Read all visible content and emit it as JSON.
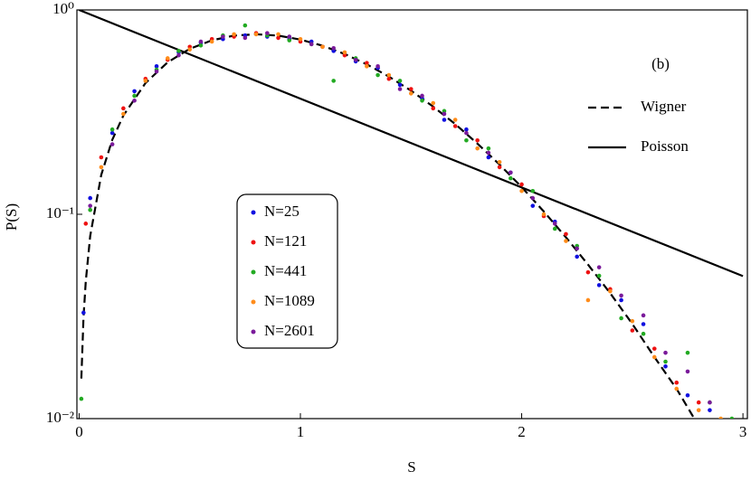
{
  "chart_data": {
    "type": "scatter",
    "x_label": "S",
    "y_label": "P(S)",
    "annotation": "(b)",
    "log_y": true,
    "xlim": [
      -0.01,
      3.02
    ],
    "ylim": [
      0.01,
      1
    ],
    "xticks": [
      0,
      1,
      2,
      3
    ],
    "yticks": [
      {
        "value": 1,
        "label": "10⁰"
      },
      {
        "value": 0.1,
        "label": "10⁻¹"
      },
      {
        "value": 0.01,
        "label": "10⁻²"
      }
    ],
    "series": [
      {
        "name": "N=25",
        "color": "#1010e0",
        "x": [
          0.02,
          0.05,
          0.15,
          0.25,
          0.35,
          0.45,
          0.55,
          0.65,
          0.75,
          0.85,
          0.95,
          1.05,
          1.15,
          1.25,
          1.35,
          1.45,
          1.55,
          1.65,
          1.75,
          1.85,
          1.95,
          2.05,
          2.15,
          2.25,
          2.35,
          2.45,
          2.55,
          2.65,
          2.75,
          2.85
        ],
        "values": [
          0.033,
          0.12,
          0.25,
          0.4,
          0.53,
          0.62,
          0.69,
          0.72,
          0.75,
          0.74,
          0.72,
          0.7,
          0.63,
          0.56,
          0.52,
          0.43,
          0.37,
          0.29,
          0.26,
          0.19,
          0.16,
          0.11,
          0.092,
          0.062,
          0.045,
          0.038,
          0.029,
          0.018,
          0.013,
          0.011
        ]
      },
      {
        "name": "N=121",
        "color": "#ee1111",
        "x": [
          0.03,
          0.1,
          0.2,
          0.3,
          0.4,
          0.5,
          0.6,
          0.7,
          0.8,
          0.9,
          1.0,
          1.1,
          1.2,
          1.3,
          1.4,
          1.5,
          1.6,
          1.7,
          1.8,
          1.9,
          2.0,
          2.1,
          2.2,
          2.3,
          2.4,
          2.5,
          2.6,
          2.7,
          2.8
        ],
        "values": [
          0.09,
          0.19,
          0.33,
          0.46,
          0.57,
          0.66,
          0.72,
          0.74,
          0.77,
          0.73,
          0.7,
          0.66,
          0.6,
          0.55,
          0.46,
          0.41,
          0.33,
          0.27,
          0.23,
          0.17,
          0.14,
          0.098,
          0.08,
          0.052,
          0.043,
          0.027,
          0.022,
          0.015,
          0.012
        ]
      },
      {
        "name": "N=441",
        "color": "#22aa22",
        "x": [
          0.01,
          0.05,
          0.15,
          0.25,
          0.35,
          0.45,
          0.55,
          0.65,
          0.75,
          0.85,
          0.95,
          1.05,
          1.15,
          1.25,
          1.35,
          1.45,
          1.55,
          1.65,
          1.75,
          1.85,
          1.95,
          2.05,
          2.15,
          2.25,
          2.35,
          2.45,
          2.55,
          2.65,
          2.75,
          2.85,
          2.95
        ],
        "values": [
          0.0125,
          0.105,
          0.26,
          0.38,
          0.51,
          0.63,
          0.67,
          0.75,
          0.84,
          0.75,
          0.71,
          0.68,
          0.45,
          0.58,
          0.48,
          0.45,
          0.36,
          0.32,
          0.23,
          0.21,
          0.15,
          0.13,
          0.085,
          0.07,
          0.05,
          0.031,
          0.026,
          0.019,
          0.021,
          0.012,
          0.01
        ]
      },
      {
        "name": "N=1089",
        "color": "#ff8c1a",
        "x": [
          0.1,
          0.2,
          0.3,
          0.4,
          0.5,
          0.6,
          0.7,
          0.8,
          0.9,
          1.0,
          1.1,
          1.2,
          1.3,
          1.4,
          1.5,
          1.6,
          1.7,
          1.8,
          1.9,
          2.0,
          2.1,
          2.2,
          2.3,
          2.4,
          2.5,
          2.6,
          2.7,
          2.8,
          2.9
        ],
        "values": [
          0.17,
          0.31,
          0.45,
          0.58,
          0.64,
          0.7,
          0.76,
          0.76,
          0.76,
          0.72,
          0.66,
          0.62,
          0.53,
          0.48,
          0.39,
          0.35,
          0.29,
          0.21,
          0.18,
          0.13,
          0.1,
          0.074,
          0.038,
          0.042,
          0.03,
          0.02,
          0.014,
          0.011,
          0.01
        ]
      },
      {
        "name": "N=2601",
        "color": "#7a1a9a",
        "x": [
          0.05,
          0.15,
          0.25,
          0.35,
          0.45,
          0.55,
          0.65,
          0.75,
          0.85,
          0.95,
          1.05,
          1.15,
          1.25,
          1.35,
          1.45,
          1.55,
          1.65,
          1.75,
          1.85,
          1.95,
          2.05,
          2.15,
          2.25,
          2.35,
          2.45,
          2.55,
          2.65,
          2.75,
          2.85
        ],
        "values": [
          0.11,
          0.22,
          0.36,
          0.5,
          0.6,
          0.7,
          0.74,
          0.73,
          0.77,
          0.74,
          0.68,
          0.65,
          0.57,
          0.53,
          0.41,
          0.38,
          0.31,
          0.25,
          0.2,
          0.16,
          0.12,
          0.09,
          0.068,
          0.055,
          0.04,
          0.032,
          0.021,
          0.017,
          0.012
        ]
      }
    ],
    "lines": [
      {
        "name": "Wigner",
        "style": "dashed",
        "color": "#000000",
        "x": [
          0.01,
          0.02,
          0.03,
          0.05,
          0.1,
          0.15,
          0.2,
          0.3,
          0.4,
          0.5,
          0.6,
          0.7,
          0.8,
          0.9,
          1,
          1.1,
          1.2,
          1.3,
          1.4,
          1.5,
          1.6,
          1.7,
          1.8,
          1.9,
          2,
          2.1,
          2.2,
          2.3,
          2.4,
          2.5,
          2.6,
          2.7,
          2.8
        ],
        "values": [
          0.0157,
          0.0314,
          0.047,
          0.0784,
          0.1559,
          0.2315,
          0.3045,
          0.4391,
          0.5541,
          0.6454,
          0.7104,
          0.7484,
          0.7603,
          0.7486,
          0.7162,
          0.668,
          0.6087,
          0.5414,
          0.4719,
          0.4025,
          0.3365,
          0.2761,
          0.2219,
          0.1752,
          0.1357,
          0.1032,
          0.0771,
          0.0567,
          0.0411,
          0.0291,
          0.02,
          0.014,
          0.0092
        ]
      },
      {
        "name": "Poisson",
        "style": "solid",
        "color": "#000000",
        "x": [
          0,
          3
        ],
        "values": [
          1,
          0.0498
        ]
      }
    ]
  }
}
